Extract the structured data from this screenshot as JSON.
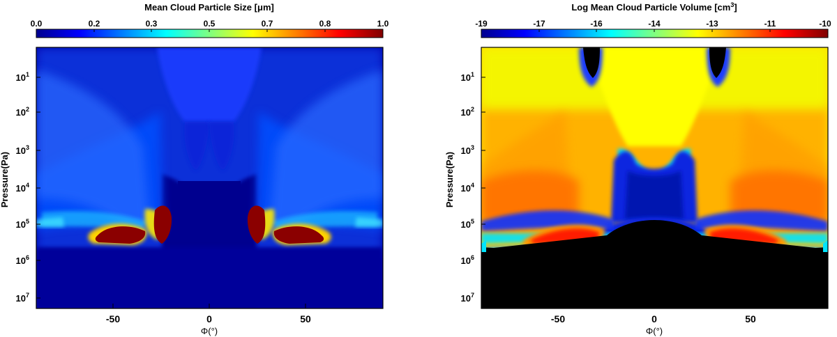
{
  "chart_data": [
    {
      "type": "heatmap",
      "title": "Mean Cloud Particle Size [",
      "title_unit_symbol": "μ",
      "title_unit_rest": "m]",
      "xlabel": "Φ(°)",
      "ylabel": "Pressure(Pa)",
      "x_ticks": [
        "-50",
        "0",
        "50"
      ],
      "x_tick_values": [
        -50,
        0,
        50
      ],
      "y_tick_mantissa": "10",
      "y_tick_exponents": [
        "1",
        "2",
        "3",
        "4",
        "5",
        "6",
        "7"
      ],
      "y_tick_values": [
        10,
        100,
        1000,
        10000,
        100000,
        1000000,
        10000000
      ],
      "xlim": [
        -90,
        90
      ],
      "ylim_log10": [
        -0.35,
        7.35
      ],
      "y_scale": "log",
      "y_reversed": true,
      "colorbar_ticks": [
        "0.0",
        "0.2",
        "0.3",
        "0.5",
        "0.7",
        "0.8",
        "1.0"
      ],
      "colorbar_range": [
        0.0,
        1.0
      ],
      "colormap": "jet",
      "features": [
        {
          "name": "deep background",
          "value": 0.07
        },
        {
          "name": "mid-latitude bands",
          "value": 0.18
        },
        {
          "name": "upper equatorial",
          "value": 0.15
        },
        {
          "name": "large particle cores",
          "phi": [
            -42,
            -27,
            27,
            42
          ],
          "pressure_Pa": 200000,
          "value": 1.0
        },
        {
          "name": "band near 1e5 Pa",
          "value": 0.3
        }
      ]
    },
    {
      "type": "heatmap",
      "title": "Log Mean Cloud Particle Volume [cm",
      "title_unit_sup": "3",
      "title_unit_rest": "]",
      "xlabel": "Φ(°)",
      "ylabel": "Pressure(Pa)",
      "x_ticks": [
        "-50",
        "0",
        "50"
      ],
      "x_tick_values": [
        -50,
        0,
        50
      ],
      "y_tick_mantissa": "10",
      "y_tick_exponents": [
        "1",
        "2",
        "3",
        "4",
        "5",
        "6",
        "7"
      ],
      "y_tick_values": [
        10,
        100,
        1000,
        10000,
        100000,
        1000000,
        10000000
      ],
      "xlim": [
        -90,
        90
      ],
      "ylim_log10": [
        -0.35,
        7.35
      ],
      "y_scale": "log",
      "y_reversed": true,
      "colorbar_ticks": [
        "-19",
        "-17",
        "-16",
        "-14",
        "-13",
        "-11",
        "-10"
      ],
      "colorbar_range": [
        -19,
        -10
      ],
      "colormap": "jet",
      "features": [
        {
          "name": "no cloud region (deep)",
          "pressure_Pa_min": 500000,
          "value": "none"
        },
        {
          "name": "upper equatorial",
          "value": -13.4
        },
        {
          "name": "mid-latitude",
          "value": -12.3
        },
        {
          "name": "peak volume",
          "phi": [
            -42,
            42
          ],
          "pressure_Pa": 200000,
          "value": -10.5
        }
      ]
    }
  ]
}
